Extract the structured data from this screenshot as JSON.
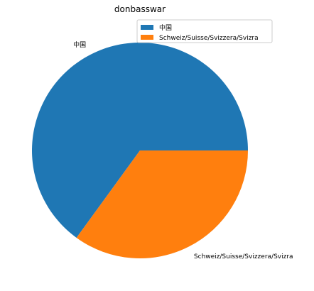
{
  "chart_data": {
    "type": "pie",
    "title": "donbasswar",
    "slices": [
      {
        "label": "中国",
        "value": 0.65,
        "color": "#1f77b4"
      },
      {
        "label": "Schweiz/Suisse/Svizzera/Svizra",
        "value": 0.35,
        "color": "#ff7f0e"
      }
    ],
    "legend_position": "top-right"
  }
}
